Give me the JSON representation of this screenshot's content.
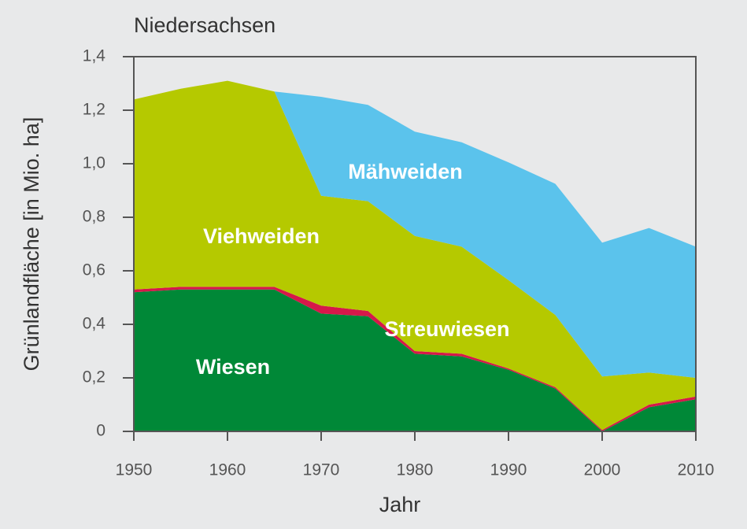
{
  "chart_data": {
    "type": "stacked_area",
    "title": "Niedersachsen",
    "x_label": "Jahr",
    "y_label": "Grünlandfläche [in Mio. ha]",
    "x": [
      1950,
      1955,
      1960,
      1965,
      1970,
      1975,
      1980,
      1985,
      1990,
      1995,
      2000,
      2005,
      2010
    ],
    "series": [
      {
        "name": "Wiesen",
        "color": "#008837",
        "values": [
          0.52,
          0.53,
          0.53,
          0.53,
          0.44,
          0.43,
          0.29,
          0.28,
          0.23,
          0.16,
          0,
          0.09,
          0.12
        ]
      },
      {
        "name": "Streuwiesen",
        "color": "#d6184a",
        "values": [
          0.01,
          0.01,
          0.01,
          0.01,
          0.03,
          0.02,
          0.01,
          0.01,
          0.005,
          0.005,
          0.005,
          0.01,
          0.01
        ]
      },
      {
        "name": "Viehweiden",
        "color": "#b5c900",
        "values": [
          0.71,
          0.74,
          0.77,
          0.73,
          0.41,
          0.41,
          0.43,
          0.4,
          0.33,
          0.27,
          0.2,
          0.12,
          0.07
        ]
      },
      {
        "name": "Mähweiden",
        "color": "#5bc3ec",
        "values": [
          null,
          null,
          null,
          0,
          0.37,
          0.36,
          0.39,
          0.39,
          0.44,
          0.49,
          0.5,
          0.54,
          0.49
        ]
      }
    ],
    "xlim": [
      1950,
      2010
    ],
    "xticks": [
      1950,
      1960,
      1970,
      1980,
      1990,
      2000,
      2010
    ],
    "ylim": [
      0,
      1.4
    ],
    "yticks": [
      0,
      {
        "value": 0.2,
        "label": "0,2"
      },
      {
        "value": 0.4,
        "label": "0,4"
      },
      {
        "value": 0.6,
        "label": "0,6"
      },
      {
        "value": 0.8,
        "label": "0,8"
      },
      {
        "value": 1.0,
        "label": "1,0"
      },
      {
        "value": 1.2,
        "label": "1,2"
      },
      {
        "value": 1.4,
        "label": "1,4"
      }
    ]
  }
}
